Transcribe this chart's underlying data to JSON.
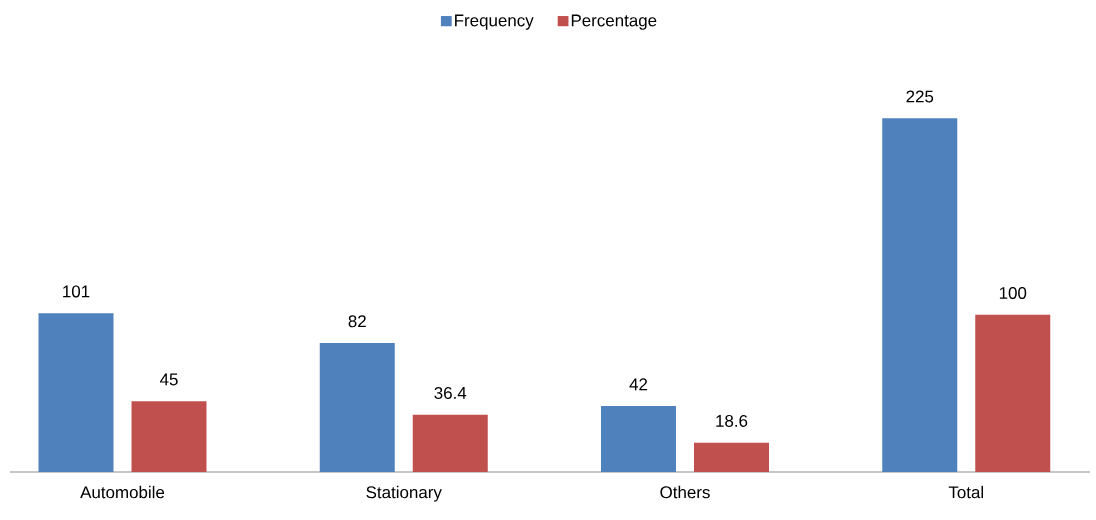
{
  "chart_data": {
    "type": "bar",
    "categories": [
      "Automobile",
      "Stationary",
      "Others",
      "Total"
    ],
    "series": [
      {
        "name": "Frequency",
        "color": "#4f81bd",
        "values": [
          101,
          82,
          42,
          225
        ]
      },
      {
        "name": "Percentage",
        "color": "#c0504d",
        "values": [
          45,
          36.4,
          18.6,
          100
        ]
      }
    ],
    "tick_labels": "x",
    "data_labels": true,
    "legend": "top",
    "grid": false
  }
}
